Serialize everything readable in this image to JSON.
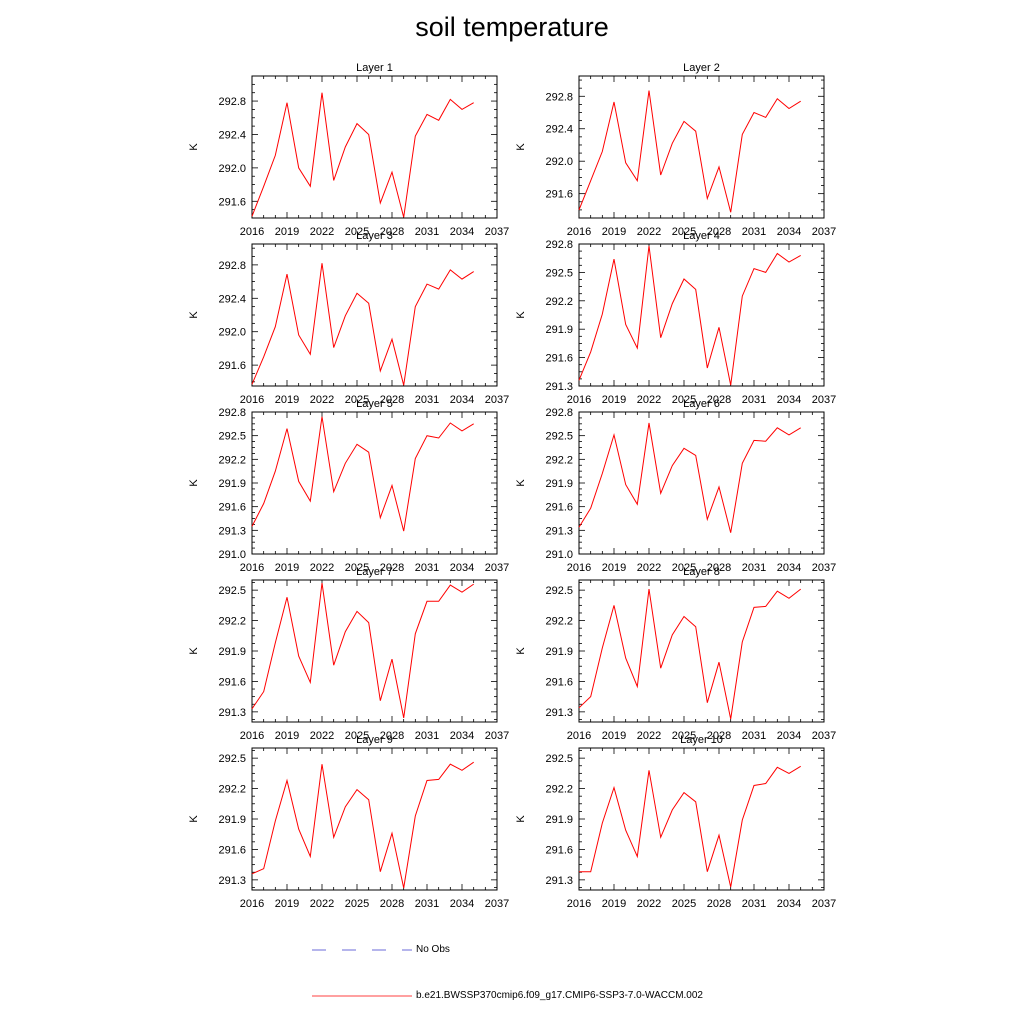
{
  "title": "soil temperature",
  "colors": {
    "model_line": "#ff0000",
    "obs_line": "#3b3bcc",
    "axis": "#000000"
  },
  "legend": {
    "obs_label": "No Obs",
    "model_label": "b.e21.BWSSP370cmip6.f09_g17.CMIP6-SSP3-7.0-WACCM.002"
  },
  "chart_data": [
    {
      "type": "line",
      "title": "Layer 1",
      "ylabel": "K",
      "xlim": [
        2016,
        2037
      ],
      "ylim": [
        291.4,
        293.1
      ],
      "xticks": [
        2016,
        2019,
        2022,
        2025,
        2028,
        2031,
        2034,
        2037
      ],
      "yticks": [
        "291.6",
        "292.0",
        "292.4",
        "292.8"
      ],
      "x": [
        2016,
        2017,
        2018,
        2019,
        2020,
        2021,
        2022,
        2023,
        2024,
        2025,
        2026,
        2027,
        2028,
        2029,
        2030,
        2031,
        2032,
        2033,
        2034,
        2035
      ],
      "series": [
        {
          "values": [
            291.42,
            291.78,
            292.15,
            292.78,
            292.0,
            291.78,
            292.9,
            291.85,
            292.25,
            292.53,
            292.4,
            291.58,
            291.95,
            291.41,
            292.38,
            292.64,
            292.57,
            292.82,
            292.7,
            292.78
          ]
        }
      ]
    },
    {
      "type": "line",
      "title": "Layer 2",
      "ylabel": "K",
      "xlim": [
        2016,
        2037
      ],
      "ylim": [
        291.3,
        293.05
      ],
      "xticks": [
        2016,
        2019,
        2022,
        2025,
        2028,
        2031,
        2034,
        2037
      ],
      "yticks": [
        "291.6",
        "292.0",
        "292.4",
        "292.8"
      ],
      "x": [
        2016,
        2017,
        2018,
        2019,
        2020,
        2021,
        2022,
        2023,
        2024,
        2025,
        2026,
        2027,
        2028,
        2029,
        2030,
        2031,
        2032,
        2033,
        2034,
        2035
      ],
      "series": [
        {
          "values": [
            291.4,
            291.76,
            292.12,
            292.73,
            291.98,
            291.76,
            292.87,
            291.83,
            292.22,
            292.49,
            292.37,
            291.54,
            291.93,
            291.37,
            292.33,
            292.6,
            292.54,
            292.77,
            292.65,
            292.74
          ]
        }
      ]
    },
    {
      "type": "line",
      "title": "Layer 3",
      "ylabel": "K",
      "xlim": [
        2016,
        2037
      ],
      "ylim": [
        291.35,
        293.05
      ],
      "xticks": [
        2016,
        2019,
        2022,
        2025,
        2028,
        2031,
        2034,
        2037
      ],
      "yticks": [
        "291.6",
        "292.0",
        "292.4",
        "292.8"
      ],
      "x": [
        2016,
        2017,
        2018,
        2019,
        2020,
        2021,
        2022,
        2023,
        2024,
        2025,
        2026,
        2027,
        2028,
        2029,
        2030,
        2031,
        2032,
        2033,
        2034,
        2035
      ],
      "series": [
        {
          "values": [
            291.37,
            291.7,
            292.06,
            292.69,
            291.96,
            291.73,
            292.82,
            291.81,
            292.19,
            292.46,
            292.34,
            291.53,
            291.91,
            291.36,
            292.3,
            292.57,
            292.51,
            292.74,
            292.63,
            292.72
          ]
        }
      ]
    },
    {
      "type": "line",
      "title": "Layer 4",
      "ylabel": "K",
      "xlim": [
        2016,
        2037
      ],
      "ylim": [
        291.3,
        292.8
      ],
      "xticks": [
        2016,
        2019,
        2022,
        2025,
        2028,
        2031,
        2034,
        2037
      ],
      "yticks": [
        "291.3",
        "291.6",
        "291.9",
        "292.2",
        "292.5",
        "292.8"
      ],
      "x": [
        2016,
        2017,
        2018,
        2019,
        2020,
        2021,
        2022,
        2023,
        2024,
        2025,
        2026,
        2027,
        2028,
        2029,
        2030,
        2031,
        2032,
        2033,
        2034,
        2035
      ],
      "series": [
        {
          "values": [
            291.36,
            291.66,
            292.06,
            292.64,
            291.95,
            291.7,
            292.78,
            291.81,
            292.17,
            292.43,
            292.32,
            291.49,
            291.92,
            291.31,
            292.25,
            292.54,
            292.5,
            292.7,
            292.61,
            292.68
          ]
        }
      ]
    },
    {
      "type": "line",
      "title": "Layer 5",
      "ylabel": "K",
      "xlim": [
        2016,
        2037
      ],
      "ylim": [
        291.0,
        292.8
      ],
      "xticks": [
        2016,
        2019,
        2022,
        2025,
        2028,
        2031,
        2034,
        2037
      ],
      "yticks": [
        "291.0",
        "291.3",
        "291.6",
        "291.9",
        "292.2",
        "292.5",
        "292.8"
      ],
      "x": [
        2016,
        2017,
        2018,
        2019,
        2020,
        2021,
        2022,
        2023,
        2024,
        2025,
        2026,
        2027,
        2028,
        2029,
        2030,
        2031,
        2032,
        2033,
        2034,
        2035
      ],
      "series": [
        {
          "values": [
            291.35,
            291.64,
            292.05,
            292.59,
            291.92,
            291.67,
            292.74,
            291.79,
            292.15,
            292.39,
            292.29,
            291.46,
            291.87,
            291.29,
            292.21,
            292.5,
            292.47,
            292.66,
            292.56,
            292.65
          ]
        }
      ]
    },
    {
      "type": "line",
      "title": "Layer 6",
      "ylabel": "K",
      "xlim": [
        2016,
        2037
      ],
      "ylim": [
        291.0,
        292.8
      ],
      "xticks": [
        2016,
        2019,
        2022,
        2025,
        2028,
        2031,
        2034,
        2037
      ],
      "yticks": [
        "291.0",
        "291.3",
        "291.6",
        "291.9",
        "292.2",
        "292.5",
        "292.8"
      ],
      "x": [
        2016,
        2017,
        2018,
        2019,
        2020,
        2021,
        2022,
        2023,
        2024,
        2025,
        2026,
        2027,
        2028,
        2029,
        2030,
        2031,
        2032,
        2033,
        2034,
        2035
      ],
      "series": [
        {
          "values": [
            291.34,
            291.58,
            292.02,
            292.51,
            291.88,
            291.63,
            292.66,
            291.77,
            292.12,
            292.34,
            292.25,
            291.44,
            291.85,
            291.27,
            292.15,
            292.44,
            292.43,
            292.6,
            292.51,
            292.6
          ]
        }
      ]
    },
    {
      "type": "line",
      "title": "Layer 7",
      "ylabel": "K",
      "xlim": [
        2016,
        2037
      ],
      "ylim": [
        291.2,
        292.6
      ],
      "xticks": [
        2016,
        2019,
        2022,
        2025,
        2028,
        2031,
        2034,
        2037
      ],
      "yticks": [
        "291.3",
        "291.6",
        "291.9",
        "292.2",
        "292.5"
      ],
      "x": [
        2016,
        2017,
        2018,
        2019,
        2020,
        2021,
        2022,
        2023,
        2024,
        2025,
        2026,
        2027,
        2028,
        2029,
        2030,
        2031,
        2032,
        2033,
        2034,
        2035
      ],
      "series": [
        {
          "values": [
            291.33,
            291.5,
            291.98,
            292.43,
            291.85,
            291.59,
            292.57,
            291.76,
            292.09,
            292.29,
            292.18,
            291.41,
            291.82,
            291.24,
            292.07,
            292.39,
            292.39,
            292.55,
            292.48,
            292.56
          ]
        }
      ]
    },
    {
      "type": "line",
      "title": "Layer 8",
      "ylabel": "K",
      "xlim": [
        2016,
        2037
      ],
      "ylim": [
        291.2,
        292.6
      ],
      "xticks": [
        2016,
        2019,
        2022,
        2025,
        2028,
        2031,
        2034,
        2037
      ],
      "yticks": [
        "291.3",
        "291.6",
        "291.9",
        "292.2",
        "292.5"
      ],
      "x": [
        2016,
        2017,
        2018,
        2019,
        2020,
        2021,
        2022,
        2023,
        2024,
        2025,
        2026,
        2027,
        2028,
        2029,
        2030,
        2031,
        2032,
        2033,
        2034,
        2035
      ],
      "series": [
        {
          "values": [
            291.34,
            291.45,
            291.93,
            292.35,
            291.83,
            291.55,
            292.51,
            291.73,
            292.06,
            292.24,
            292.14,
            291.39,
            291.79,
            291.23,
            291.99,
            292.33,
            292.34,
            292.49,
            292.42,
            292.51
          ]
        }
      ]
    },
    {
      "type": "line",
      "title": "Layer 9",
      "ylabel": "K",
      "xlim": [
        2016,
        2037
      ],
      "ylim": [
        291.2,
        292.6
      ],
      "xticks": [
        2016,
        2019,
        2022,
        2025,
        2028,
        2031,
        2034,
        2037
      ],
      "yticks": [
        "291.3",
        "291.6",
        "291.9",
        "292.2",
        "292.5"
      ],
      "x": [
        2016,
        2017,
        2018,
        2019,
        2020,
        2021,
        2022,
        2023,
        2024,
        2025,
        2026,
        2027,
        2028,
        2029,
        2030,
        2031,
        2032,
        2033,
        2034,
        2035
      ],
      "series": [
        {
          "values": [
            291.36,
            291.41,
            291.88,
            292.28,
            291.8,
            291.53,
            292.44,
            291.72,
            292.02,
            292.19,
            292.09,
            291.38,
            291.76,
            291.22,
            291.93,
            292.28,
            292.29,
            292.44,
            292.38,
            292.46
          ]
        }
      ]
    },
    {
      "type": "line",
      "title": "Layer 10",
      "ylabel": "K",
      "xlim": [
        2016,
        2037
      ],
      "ylim": [
        291.2,
        292.6
      ],
      "xticks": [
        2016,
        2019,
        2022,
        2025,
        2028,
        2031,
        2034,
        2037
      ],
      "yticks": [
        "291.3",
        "291.6",
        "291.9",
        "292.2",
        "292.5"
      ],
      "x": [
        2016,
        2017,
        2018,
        2019,
        2020,
        2021,
        2022,
        2023,
        2024,
        2025,
        2026,
        2027,
        2028,
        2029,
        2030,
        2031,
        2032,
        2033,
        2034,
        2035
      ],
      "series": [
        {
          "values": [
            291.38,
            291.38,
            291.86,
            292.21,
            291.79,
            291.53,
            292.38,
            291.72,
            291.99,
            292.16,
            292.07,
            291.38,
            291.74,
            291.23,
            291.89,
            292.23,
            292.25,
            292.41,
            292.35,
            292.42
          ]
        }
      ]
    }
  ]
}
